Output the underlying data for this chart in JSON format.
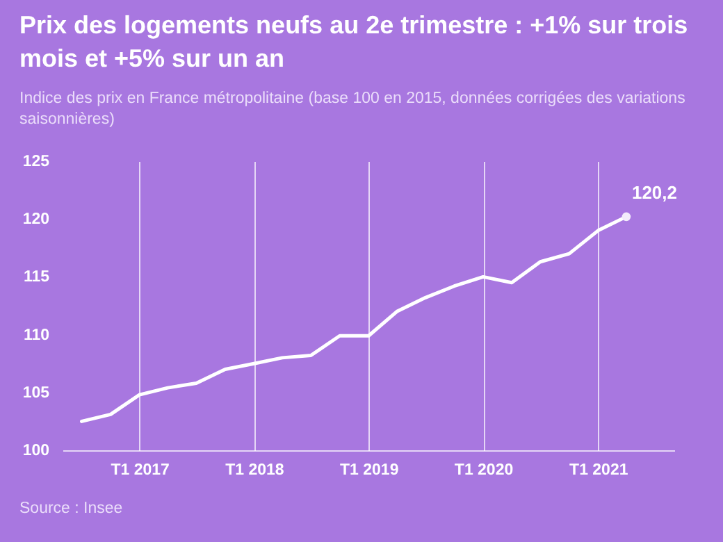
{
  "chart_data": {
    "type": "line",
    "title": "Prix des logements neufs au 2e trimestre : +1% sur trois mois et +5% sur un an",
    "subtitle": "Indice des prix en France métropolitaine (base 100 en 2015, données corrigées des variations saisonnières)",
    "x": [
      "2016-07",
      "2016-10",
      "2017-01",
      "2017-04",
      "2017-07",
      "2017-10",
      "2018-01",
      "2018-04",
      "2018-07",
      "2018-10",
      "2019-01",
      "2019-04",
      "2019-07",
      "2019-10",
      "2020-01",
      "2020-04",
      "2020-07",
      "2020-10",
      "2021-01",
      "2021-04"
    ],
    "series": [
      {
        "color": "#ffffff",
        "values": [
          102.5,
          103.1,
          104.8,
          105.4,
          105.8,
          107.0,
          107.5,
          108.0,
          108.2,
          109.9,
          109.9,
          112.0,
          113.2,
          114.2,
          115.0,
          114.5,
          116.3,
          117.0,
          119.0,
          120.2
        ]
      }
    ],
    "xlim": [
      "2016-05",
      "2021-09"
    ],
    "xticks": [
      {
        "value": "2017-01",
        "label": "T1 2017"
      },
      {
        "value": "2018-01",
        "label": "T1 2018"
      },
      {
        "value": "2019-01",
        "label": "T1 2019"
      },
      {
        "value": "2020-01",
        "label": "T1 2020"
      },
      {
        "value": "2021-01",
        "label": "T1 2021"
      }
    ],
    "ylim": [
      100,
      125
    ],
    "yticks": [
      100,
      105,
      110,
      115,
      120,
      125
    ],
    "grid": "x",
    "line_style": "solid",
    "annotations": [
      {
        "text": "120,2",
        "x": "2021-04",
        "y": 120.2
      },
      "Source : Insee"
    ]
  }
}
